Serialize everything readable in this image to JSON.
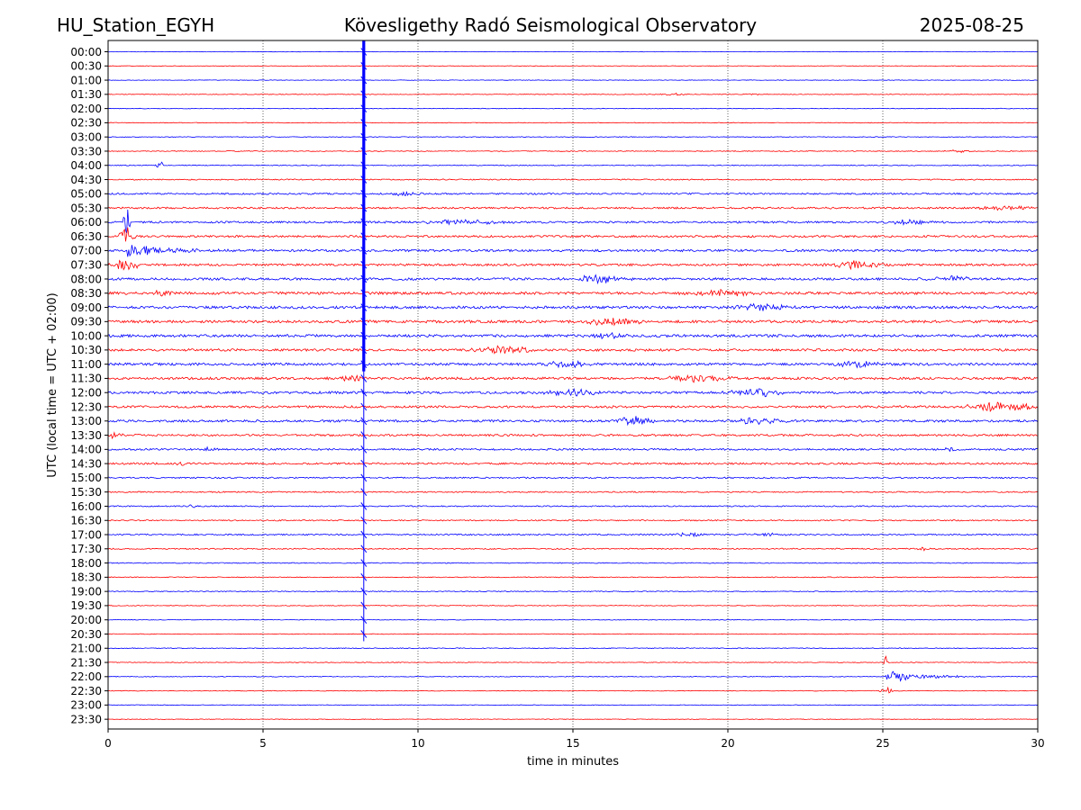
{
  "header": {
    "station": "HU_Station_EGYH",
    "observatory": "Kövesligethy Radó Seismological Observatory",
    "date": "2025-08-25"
  },
  "chart_data": {
    "type": "line",
    "title": "Kövesligethy Radó Seismological Observatory",
    "xlabel": "time in minutes",
    "ylabel": "UTC (local time = UTC + 02:00)",
    "xlim": [
      0,
      30
    ],
    "xticks": [
      0,
      5,
      10,
      15,
      20,
      25,
      30
    ],
    "grid_x": true,
    "series_colors": [
      "#0000ff",
      "#ff0000"
    ],
    "rows": [
      {
        "label": "00:00",
        "noise": 0.12,
        "events": []
      },
      {
        "label": "00:30",
        "noise": 0.12,
        "events": []
      },
      {
        "label": "01:00",
        "noise": 0.14,
        "events": []
      },
      {
        "label": "01:30",
        "noise": 0.16,
        "events": [
          {
            "t": 18.2,
            "amp": 0.4,
            "dur": 0.8,
            "decay": false
          },
          {
            "t": 21.0,
            "amp": 0.3,
            "dur": 0.6,
            "decay": false
          }
        ]
      },
      {
        "label": "02:00",
        "noise": 0.15,
        "events": []
      },
      {
        "label": "02:30",
        "noise": 0.16,
        "events": []
      },
      {
        "label": "03:00",
        "noise": 0.17,
        "events": []
      },
      {
        "label": "03:30",
        "noise": 0.2,
        "events": [
          {
            "t": 27.5,
            "amp": 0.4,
            "dur": 0.8,
            "decay": false
          }
        ]
      },
      {
        "label": "04:00",
        "noise": 0.22,
        "events": [
          {
            "t": 1.7,
            "amp": 1.3,
            "dur": 0.2,
            "decay": false
          }
        ]
      },
      {
        "label": "04:30",
        "noise": 0.28,
        "events": []
      },
      {
        "label": "05:00",
        "noise": 0.4,
        "events": [
          {
            "t": 9.5,
            "amp": 0.6,
            "dur": 1.0,
            "decay": false
          }
        ]
      },
      {
        "label": "05:30",
        "noise": 0.45,
        "events": [
          {
            "t": 29.0,
            "amp": 0.7,
            "dur": 1.5,
            "decay": false
          }
        ]
      },
      {
        "label": "06:00",
        "noise": 0.5,
        "events": [
          {
            "t": 0.6,
            "amp": 6.0,
            "dur": 0.15,
            "decay": false
          },
          {
            "t": 11.5,
            "amp": 0.7,
            "dur": 2.0,
            "decay": false
          },
          {
            "t": 25.8,
            "amp": 0.9,
            "dur": 1.0,
            "decay": false
          }
        ]
      },
      {
        "label": "06:30",
        "noise": 0.5,
        "events": [
          {
            "t": 0.6,
            "amp": 3.0,
            "dur": 0.4,
            "decay": false
          }
        ]
      },
      {
        "label": "07:00",
        "noise": 0.55,
        "events": [
          {
            "t": 0.6,
            "amp": 2.6,
            "dur": 3.4,
            "decay": true
          }
        ]
      },
      {
        "label": "07:30",
        "noise": 0.55,
        "events": [
          {
            "t": 0.6,
            "amp": 2.2,
            "dur": 0.6,
            "decay": false
          },
          {
            "t": 24.1,
            "amp": 1.6,
            "dur": 1.4,
            "decay": false
          }
        ]
      },
      {
        "label": "08:00",
        "noise": 0.6,
        "events": [
          {
            "t": 15.8,
            "amp": 1.3,
            "dur": 1.4,
            "decay": false
          },
          {
            "t": 27.3,
            "amp": 0.9,
            "dur": 1.0,
            "decay": false
          }
        ]
      },
      {
        "label": "08:30",
        "noise": 0.65,
        "events": [
          {
            "t": 1.7,
            "amp": 0.9,
            "dur": 0.5,
            "decay": false
          },
          {
            "t": 19.8,
            "amp": 1.0,
            "dur": 1.6,
            "decay": false
          }
        ]
      },
      {
        "label": "09:00",
        "noise": 0.65,
        "events": [
          {
            "t": 21.0,
            "amp": 1.1,
            "dur": 1.4,
            "decay": false
          }
        ]
      },
      {
        "label": "09:30",
        "noise": 0.65,
        "events": [
          {
            "t": 16.2,
            "amp": 1.3,
            "dur": 1.6,
            "decay": false
          }
        ]
      },
      {
        "label": "10:00",
        "noise": 0.65,
        "events": [
          {
            "t": 16.0,
            "amp": 0.9,
            "dur": 1.0,
            "decay": false
          }
        ]
      },
      {
        "label": "10:30",
        "noise": 0.6,
        "events": [
          {
            "t": 12.7,
            "amp": 1.3,
            "dur": 1.4,
            "decay": false
          }
        ]
      },
      {
        "label": "11:00",
        "noise": 0.6,
        "events": [
          {
            "t": 14.8,
            "amp": 1.0,
            "dur": 1.4,
            "decay": false
          },
          {
            "t": 24.3,
            "amp": 1.1,
            "dur": 1.2,
            "decay": false
          }
        ]
      },
      {
        "label": "11:30",
        "noise": 0.6,
        "events": [
          {
            "t": 7.8,
            "amp": 0.9,
            "dur": 0.8,
            "decay": false
          },
          {
            "t": 19.1,
            "amp": 1.4,
            "dur": 1.6,
            "decay": false
          }
        ]
      },
      {
        "label": "12:00",
        "noise": 0.6,
        "events": [
          {
            "t": 14.9,
            "amp": 1.1,
            "dur": 1.6,
            "decay": false
          },
          {
            "t": 21.0,
            "amp": 1.3,
            "dur": 1.4,
            "decay": false
          }
        ]
      },
      {
        "label": "12:30",
        "noise": 0.55,
        "events": [
          {
            "t": 28.8,
            "amp": 1.5,
            "dur": 1.8,
            "decay": false
          }
        ]
      },
      {
        "label": "13:00",
        "noise": 0.55,
        "events": [
          {
            "t": 17.0,
            "amp": 1.4,
            "dur": 1.0,
            "decay": false
          },
          {
            "t": 21.0,
            "amp": 1.0,
            "dur": 1.4,
            "decay": false
          }
        ]
      },
      {
        "label": "13:30",
        "noise": 0.5,
        "events": [
          {
            "t": 0.2,
            "amp": 0.9,
            "dur": 0.4,
            "decay": false
          }
        ]
      },
      {
        "label": "14:00",
        "noise": 0.45,
        "events": [
          {
            "t": 3.2,
            "amp": 0.6,
            "dur": 0.6,
            "decay": false
          },
          {
            "t": 27.2,
            "amp": 0.6,
            "dur": 0.6,
            "decay": false
          }
        ]
      },
      {
        "label": "14:30",
        "noise": 0.45,
        "events": [
          {
            "t": 2.5,
            "amp": 0.5,
            "dur": 0.5,
            "decay": false
          }
        ]
      },
      {
        "label": "15:00",
        "noise": 0.35,
        "events": []
      },
      {
        "label": "15:30",
        "noise": 0.3,
        "events": []
      },
      {
        "label": "16:00",
        "noise": 0.3,
        "events": [
          {
            "t": 2.7,
            "amp": 1.0,
            "dur": 0.2,
            "decay": false
          }
        ]
      },
      {
        "label": "16:30",
        "noise": 0.3,
        "events": []
      },
      {
        "label": "17:00",
        "noise": 0.35,
        "events": [
          {
            "t": 18.8,
            "amp": 0.6,
            "dur": 0.9,
            "decay": false
          },
          {
            "t": 21.2,
            "amp": 0.6,
            "dur": 1.0,
            "decay": false
          }
        ]
      },
      {
        "label": "17:30",
        "noise": 0.3,
        "events": [
          {
            "t": 26.3,
            "amp": 0.8,
            "dur": 0.3,
            "decay": false
          }
        ]
      },
      {
        "label": "18:00",
        "noise": 0.22,
        "events": []
      },
      {
        "label": "18:30",
        "noise": 0.2,
        "events": []
      },
      {
        "label": "19:00",
        "noise": 0.22,
        "events": []
      },
      {
        "label": "19:30",
        "noise": 0.18,
        "events": []
      },
      {
        "label": "20:00",
        "noise": 0.16,
        "events": []
      },
      {
        "label": "20:30",
        "noise": 0.16,
        "events": []
      },
      {
        "label": "21:00",
        "noise": 0.2,
        "events": []
      },
      {
        "label": "21:30",
        "noise": 0.16,
        "events": [
          {
            "t": 25.1,
            "amp": 3.0,
            "dur": 0.1,
            "decay": false
          }
        ]
      },
      {
        "label": "22:00",
        "noise": 0.18,
        "events": [
          {
            "t": 25.1,
            "amp": 2.3,
            "dur": 3.2,
            "decay": true
          }
        ]
      },
      {
        "label": "22:30",
        "noise": 0.16,
        "events": [
          {
            "t": 25.1,
            "amp": 1.5,
            "dur": 0.3,
            "decay": false
          }
        ]
      },
      {
        "label": "23:00",
        "noise": 0.16,
        "events": []
      },
      {
        "label": "23:30",
        "noise": 0.14,
        "events": []
      }
    ],
    "spike": {
      "t": 8.25,
      "from": "00:00",
      "to": "20:30",
      "color": "#0000ff"
    }
  }
}
